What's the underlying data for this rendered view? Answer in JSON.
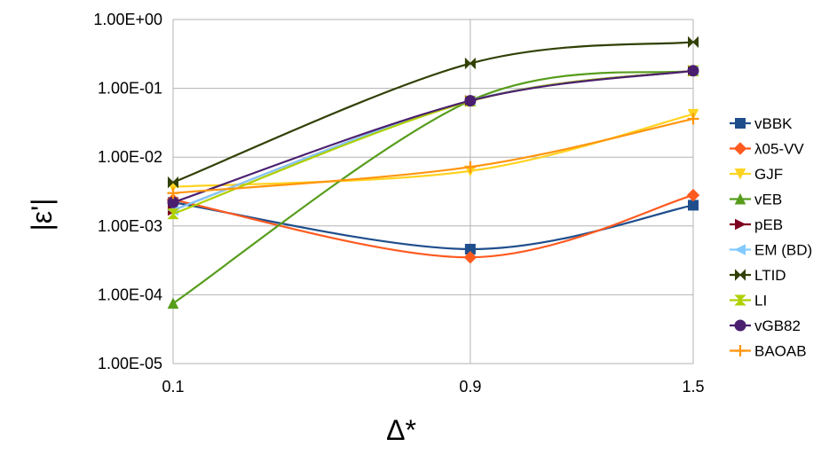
{
  "chart_data": {
    "type": "line",
    "title": "",
    "xlabel": "Δ*",
    "ylabel": "|ε'|",
    "x": [
      0.1,
      0.9,
      1.5
    ],
    "x_tick_labels": [
      "0.1",
      "0.9",
      "1.5"
    ],
    "yscale": "log",
    "ylim": [
      1e-05,
      1
    ],
    "y_tick_labels": [
      "1.00E+00",
      "1.00E-01",
      "1.00E-02",
      "1.00E-03",
      "1.00E-04",
      "1.00E-05"
    ],
    "grid": true,
    "legend_position": "right",
    "series": [
      {
        "name": "vBBK",
        "color": "#1f4e8c",
        "marker": "square",
        "values": [
          0.0022,
          0.00046,
          0.002
        ]
      },
      {
        "name": "λ05-VV",
        "color": "#ff5a1f",
        "marker": "diamond",
        "values": [
          0.0024,
          0.00035,
          0.0028
        ]
      },
      {
        "name": "GJF",
        "color": "#ffd320",
        "marker": "triangle-down",
        "values": [
          0.0037,
          0.0063,
          0.042
        ]
      },
      {
        "name": "vEB",
        "color": "#579d1c",
        "marker": "triangle-up",
        "values": [
          7.5e-05,
          0.066,
          0.18
        ]
      },
      {
        "name": "pEB",
        "color": "#7e0021",
        "marker": "triangle-right",
        "values": [
          0.0017,
          0.066,
          0.18
        ]
      },
      {
        "name": "EM (BD)",
        "color": "#83caff",
        "marker": "triangle-left",
        "values": [
          0.0017,
          0.066,
          0.18
        ]
      },
      {
        "name": "LTID",
        "color": "#314004",
        "marker": "bowtie",
        "values": [
          0.0043,
          0.23,
          0.47
        ]
      },
      {
        "name": "LI",
        "color": "#aecf00",
        "marker": "hourglass",
        "values": [
          0.0015,
          0.065,
          0.18
        ]
      },
      {
        "name": "vGB82",
        "color": "#4b1f6f",
        "marker": "circle",
        "values": [
          0.0022,
          0.066,
          0.18
        ]
      },
      {
        "name": "BAOAB",
        "color": "#ff950e",
        "marker": "plus",
        "values": [
          0.003,
          0.0072,
          0.036
        ]
      }
    ]
  }
}
